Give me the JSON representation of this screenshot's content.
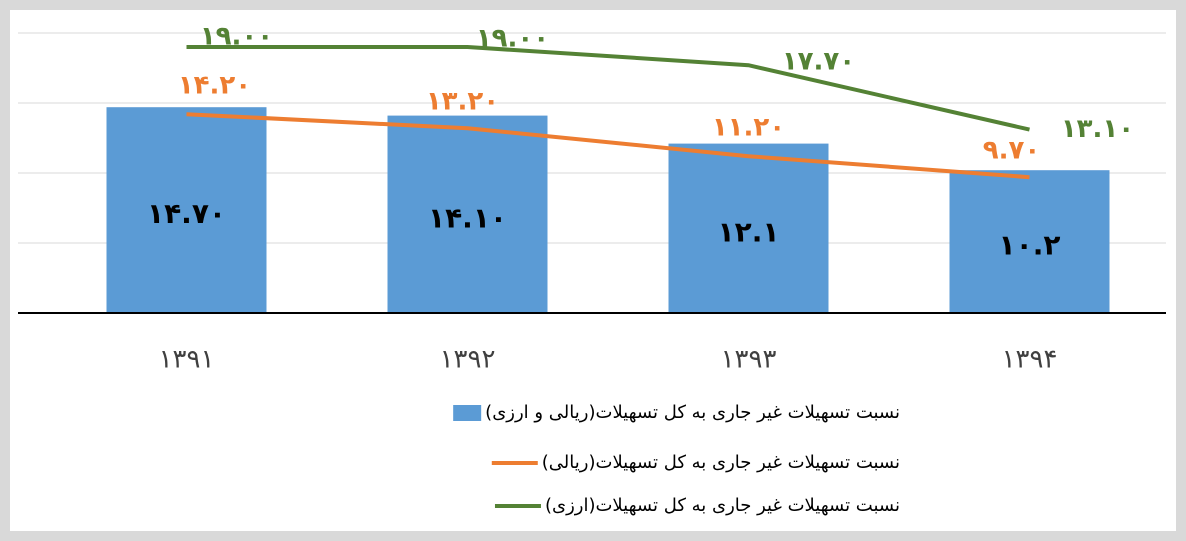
{
  "chart_data": {
    "type": "bar-line",
    "categories": [
      "۱۳۹۱",
      "۱۳۹۲",
      "۱۳۹۳",
      "۱۳۹۴"
    ],
    "series": [
      {
        "name": "نسبت تسهیلات غیر جاری به کل تسهیلات(ریالی و ارزی)",
        "type": "bar",
        "color": "#5b9bd5",
        "values": [
          14.7,
          14.1,
          12.1,
          10.2
        ],
        "value_labels": [
          "۱۴.۷۰",
          "۱۴.۱۰",
          "۱۲.۱",
          "۱۰.۲"
        ]
      },
      {
        "name": "نسبت تسهیلات غیر جاری به کل تسهیلات(ریالی)",
        "type": "line",
        "color": "#ed7d31",
        "values": [
          14.2,
          13.2,
          11.2,
          9.7
        ],
        "value_labels": [
          "۱۴.۲۰",
          "۱۳.۲۰",
          "۱۱.۲۰",
          "۹.۷۰"
        ]
      },
      {
        "name": "نسبت تسهیلات غیر جاری به کل تسهیلات(ارزی)",
        "type": "line",
        "color": "#548235",
        "values": [
          19,
          19,
          17.7,
          13.1
        ],
        "value_labels": [
          "۱۹.۰۰",
          "۱۹.۰۰",
          "۱۷.۷۰",
          "۱۳.۱۰"
        ]
      }
    ],
    "ylim": [
      0,
      20
    ],
    "yticks": [
      0,
      5,
      10,
      15,
      20
    ],
    "grid": true,
    "legend": "bottom"
  }
}
